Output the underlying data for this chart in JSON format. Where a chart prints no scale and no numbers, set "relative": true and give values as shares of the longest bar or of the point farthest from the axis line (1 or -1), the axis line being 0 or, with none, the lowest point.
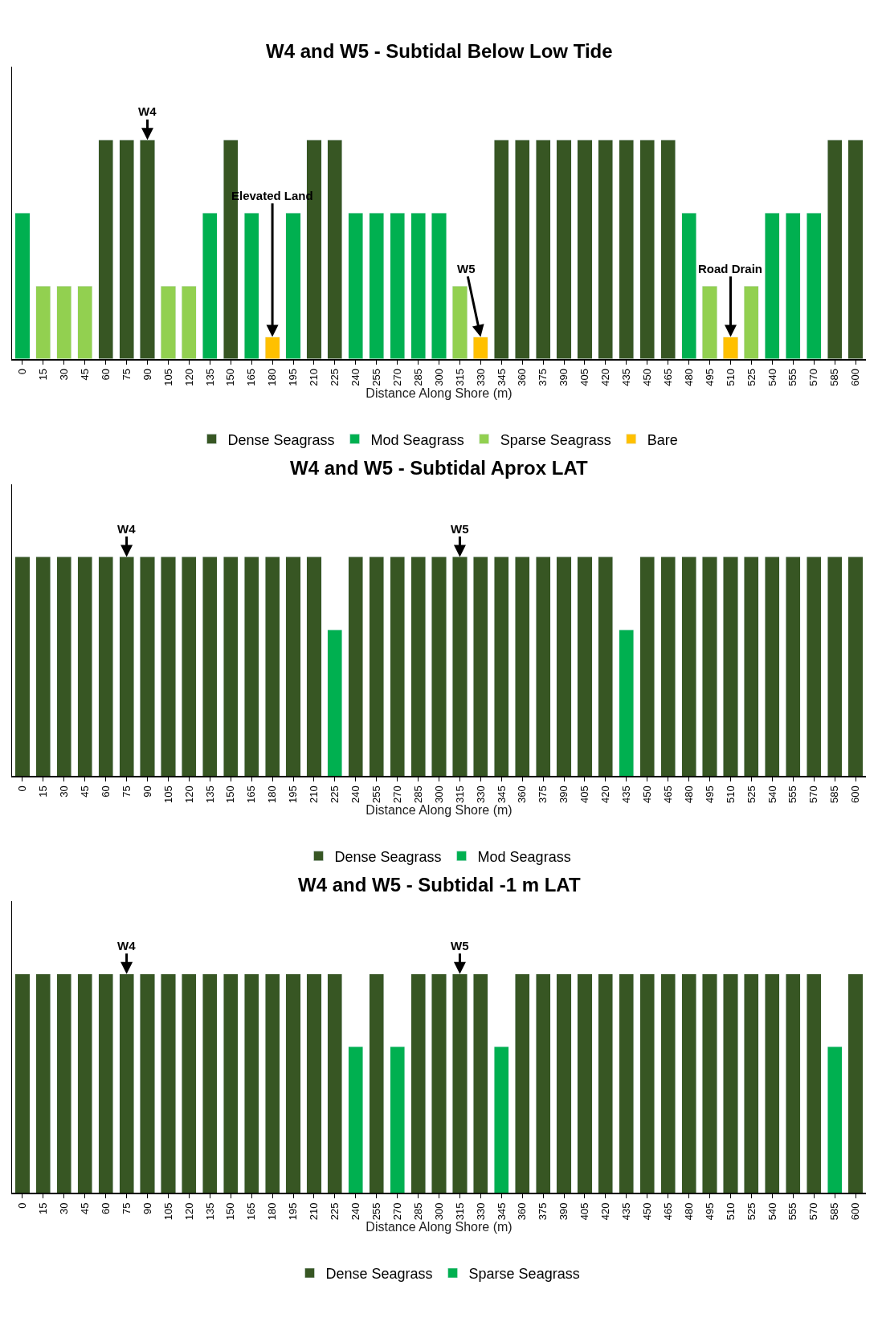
{
  "chart_data": [
    {
      "type": "bar",
      "title": "W4 and W5 - Subtidal Below Low Tide",
      "xlabel": "Distance Along Shore (m)",
      "stacked": true,
      "relative": true,
      "legend": "bottom",
      "categories": [
        "0",
        "15",
        "30",
        "45",
        "60",
        "75",
        "90",
        "105",
        "120",
        "135",
        "150",
        "165",
        "180",
        "195",
        "210",
        "225",
        "240",
        "255",
        "270",
        "285",
        "300",
        "315",
        "330",
        "345",
        "360",
        "375",
        "390",
        "405",
        "420",
        "435",
        "450",
        "465",
        "480",
        "495",
        "510",
        "525",
        "540",
        "555",
        "570",
        "585",
        "600"
      ],
      "series": [
        {
          "name": "Dense Seagrass",
          "color": "#375623",
          "values": [
            null,
            null,
            null,
            null,
            1,
            1,
            1,
            null,
            null,
            null,
            1,
            null,
            null,
            null,
            1,
            1,
            null,
            null,
            null,
            null,
            null,
            null,
            null,
            1,
            1,
            1,
            1,
            1,
            1,
            1,
            1,
            1,
            null,
            null,
            null,
            null,
            null,
            null,
            null,
            1,
            1
          ]
        },
        {
          "name": "Mod Seagrass",
          "color": "#00b050",
          "values": [
            0.667,
            null,
            null,
            null,
            null,
            null,
            null,
            null,
            null,
            0.667,
            null,
            0.667,
            null,
            0.667,
            null,
            null,
            0.667,
            0.667,
            0.667,
            0.667,
            0.667,
            null,
            null,
            null,
            null,
            null,
            null,
            null,
            null,
            null,
            null,
            null,
            0.667,
            null,
            null,
            null,
            0.667,
            0.667,
            0.667,
            null,
            null
          ]
        },
        {
          "name": "Sparse Seagrass",
          "color": "#92d050",
          "values": [
            null,
            0.333,
            0.333,
            0.333,
            null,
            null,
            null,
            0.333,
            0.333,
            null,
            null,
            null,
            null,
            null,
            null,
            null,
            null,
            null,
            null,
            null,
            null,
            0.333,
            null,
            null,
            null,
            null,
            null,
            null,
            null,
            null,
            null,
            null,
            null,
            0.333,
            null,
            0.333,
            null,
            null,
            null,
            null,
            null
          ]
        },
        {
          "name": "Bare",
          "color": "#ffc000",
          "values": [
            null,
            null,
            null,
            null,
            null,
            null,
            null,
            null,
            null,
            null,
            null,
            null,
            0.1,
            null,
            null,
            null,
            null,
            null,
            null,
            null,
            null,
            null,
            0.1,
            null,
            null,
            null,
            null,
            null,
            null,
            null,
            null,
            null,
            null,
            null,
            0.1,
            null,
            null,
            null,
            null,
            null,
            null
          ]
        }
      ],
      "annotations": [
        {
          "text": "W4",
          "x": "90",
          "y": 1
        },
        {
          "text": "Elevated Land",
          "x": "180",
          "y": 0.1
        },
        {
          "text": "W5",
          "x": "330",
          "y": 0.1
        },
        {
          "text": "Road Drain",
          "x": "510",
          "y": 0.1
        }
      ]
    },
    {
      "type": "bar",
      "title": "W4 and W5 - Subtidal Aprox LAT",
      "xlabel": "Distance Along Shore (m)",
      "stacked": true,
      "relative": true,
      "legend": "bottom",
      "categories": [
        "0",
        "15",
        "30",
        "45",
        "60",
        "75",
        "90",
        "105",
        "120",
        "135",
        "150",
        "165",
        "180",
        "195",
        "210",
        "225",
        "240",
        "255",
        "270",
        "285",
        "300",
        "315",
        "330",
        "345",
        "360",
        "375",
        "390",
        "405",
        "420",
        "435",
        "450",
        "465",
        "480",
        "495",
        "510",
        "525",
        "540",
        "555",
        "570",
        "585",
        "600"
      ],
      "series": [
        {
          "name": "Dense Seagrass",
          "color": "#375623",
          "values": [
            1,
            1,
            1,
            1,
            1,
            1,
            1,
            1,
            1,
            1,
            1,
            1,
            1,
            1,
            1,
            null,
            1,
            1,
            1,
            1,
            1,
            1,
            1,
            1,
            1,
            1,
            1,
            1,
            1,
            null,
            1,
            1,
            1,
            1,
            1,
            1,
            1,
            1,
            1,
            1,
            1
          ]
        },
        {
          "name": "Mod Seagrass",
          "color": "#00b050",
          "values": [
            null,
            null,
            null,
            null,
            null,
            null,
            null,
            null,
            null,
            null,
            null,
            null,
            null,
            null,
            null,
            0.667,
            null,
            null,
            null,
            null,
            null,
            null,
            null,
            null,
            null,
            null,
            null,
            null,
            null,
            0.667,
            null,
            null,
            null,
            null,
            null,
            null,
            null,
            null,
            null,
            null,
            null
          ]
        }
      ],
      "annotations": [
        {
          "text": "W4",
          "x": "75",
          "y": 1
        },
        {
          "text": "W5",
          "x": "315",
          "y": 1
        }
      ]
    },
    {
      "type": "bar",
      "title": "W4 and W5 - Subtidal -1 m LAT",
      "xlabel": "Distance Along Shore (m)",
      "stacked": true,
      "relative": true,
      "legend": "bottom",
      "categories": [
        "0",
        "15",
        "30",
        "45",
        "60",
        "75",
        "90",
        "105",
        "120",
        "135",
        "150",
        "165",
        "180",
        "195",
        "210",
        "225",
        "240",
        "255",
        "270",
        "285",
        "300",
        "315",
        "330",
        "345",
        "360",
        "375",
        "390",
        "405",
        "420",
        "435",
        "450",
        "465",
        "480",
        "495",
        "510",
        "525",
        "540",
        "555",
        "570",
        "585",
        "600"
      ],
      "series": [
        {
          "name": "Dense Seagrass",
          "color": "#375623",
          "values": [
            1,
            1,
            1,
            1,
            1,
            1,
            1,
            1,
            1,
            1,
            1,
            1,
            1,
            1,
            1,
            1,
            null,
            1,
            null,
            1,
            1,
            1,
            1,
            null,
            1,
            1,
            1,
            1,
            1,
            1,
            1,
            1,
            1,
            1,
            1,
            1,
            1,
            1,
            1,
            null,
            1
          ]
        },
        {
          "name": "Sparse Seagrass",
          "color": "#00b050",
          "values": [
            null,
            null,
            null,
            null,
            null,
            null,
            null,
            null,
            null,
            null,
            null,
            null,
            null,
            null,
            null,
            null,
            0.667,
            null,
            0.667,
            null,
            null,
            null,
            null,
            0.667,
            null,
            null,
            null,
            null,
            null,
            null,
            null,
            null,
            null,
            null,
            null,
            null,
            null,
            null,
            null,
            0.667,
            null
          ]
        }
      ],
      "annotations": [
        {
          "text": "W4",
          "x": "75",
          "y": 1
        },
        {
          "text": "W5",
          "x": "315",
          "y": 1
        }
      ]
    }
  ]
}
